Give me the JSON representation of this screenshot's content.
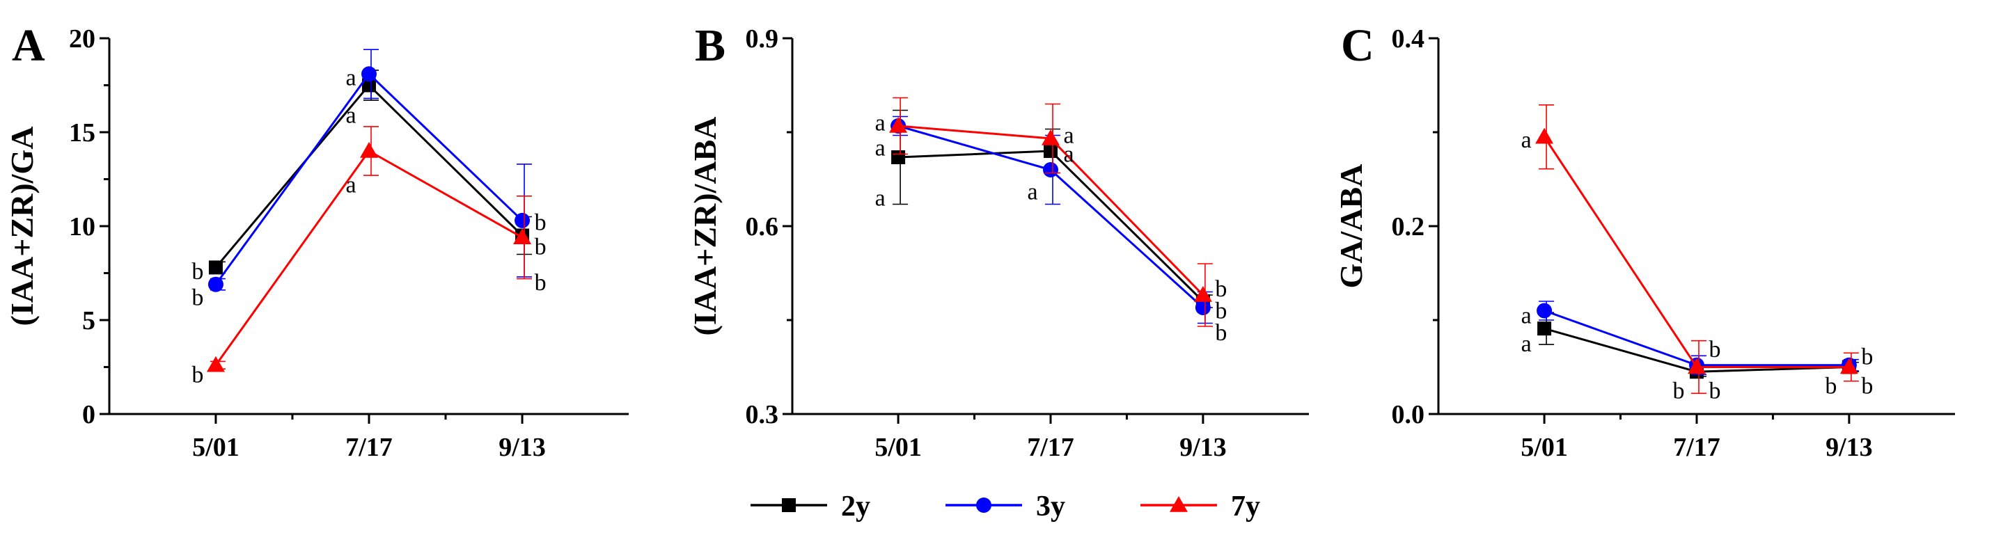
{
  "colors": {
    "2y": "#000000",
    "3y": "#0000ff",
    "7y": "#ff0000"
  },
  "legend": [
    "2y",
    "3y",
    "7y"
  ],
  "chart_data": [
    {
      "panel": "A",
      "type": "line",
      "ylabel": "(IAA+ZR)/GA",
      "categories": [
        "5/01",
        "7/17",
        "9/13"
      ],
      "ylim": [
        0,
        20
      ],
      "yticks": [
        "0",
        "5",
        "10",
        "15",
        "20"
      ],
      "series": [
        {
          "name": "2y",
          "marker": "square",
          "values": [
            7.8,
            17.5,
            9.5
          ],
          "err": [
            0.3,
            0.8,
            1.0
          ]
        },
        {
          "name": "3y",
          "marker": "circle",
          "values": [
            6.9,
            18.1,
            10.3
          ],
          "err": [
            0.3,
            1.3,
            3.0
          ]
        },
        {
          "name": "7y",
          "marker": "triangle",
          "values": [
            2.6,
            14.0,
            9.4
          ],
          "err": [
            0.2,
            1.3,
            2.2
          ]
        }
      ],
      "annotations": [
        {
          "text": "b",
          "x": 0,
          "y": 7.6,
          "side": "left"
        },
        {
          "text": "b",
          "x": 0,
          "y": 6.2,
          "side": "left"
        },
        {
          "text": "b",
          "x": 0,
          "y": 2.1,
          "side": "left"
        },
        {
          "text": "a",
          "x": 1,
          "y": 17.9,
          "side": "left"
        },
        {
          "text": "a",
          "x": 1,
          "y": 15.9,
          "side": "left"
        },
        {
          "text": "a",
          "x": 1,
          "y": 12.2,
          "side": "left"
        },
        {
          "text": "b",
          "x": 2,
          "y": 10.2,
          "side": "right"
        },
        {
          "text": "b",
          "x": 2,
          "y": 8.9,
          "side": "right"
        },
        {
          "text": "b",
          "x": 2,
          "y": 7.0,
          "side": "right"
        }
      ]
    },
    {
      "panel": "B",
      "type": "line",
      "ylabel": "(IAA+ZR)/ABA",
      "categories": [
        "5/01",
        "7/17",
        "9/13"
      ],
      "ylim": [
        0.3,
        0.9
      ],
      "yticks": [
        "0.3",
        "0.6",
        "0.9"
      ],
      "series": [
        {
          "name": "2y",
          "marker": "square",
          "values": [
            0.71,
            0.72,
            0.48
          ],
          "err": [
            0.075,
            0.035,
            0.01
          ]
        },
        {
          "name": "3y",
          "marker": "circle",
          "values": [
            0.76,
            0.69,
            0.47
          ],
          "err": [
            0.015,
            0.055,
            0.025
          ]
        },
        {
          "name": "7y",
          "marker": "triangle",
          "values": [
            0.76,
            0.74,
            0.49
          ],
          "err": [
            0.045,
            0.055,
            0.05
          ]
        }
      ],
      "annotations": [
        {
          "text": "a",
          "x": 0,
          "y": 0.765,
          "side": "left"
        },
        {
          "text": "a",
          "x": 0,
          "y": 0.725,
          "side": "left"
        },
        {
          "text": "a",
          "x": 0,
          "y": 0.645,
          "side": "left"
        },
        {
          "text": "a",
          "x": 1,
          "y": 0.745,
          "side": "right"
        },
        {
          "text": "a",
          "x": 1,
          "y": 0.715,
          "side": "right"
        },
        {
          "text": "a",
          "x": 1,
          "y": 0.655,
          "side": "left"
        },
        {
          "text": "b",
          "x": 2,
          "y": 0.5,
          "side": "right"
        },
        {
          "text": "b",
          "x": 2,
          "y": 0.465,
          "side": "right"
        },
        {
          "text": "b",
          "x": 2,
          "y": 0.43,
          "side": "right"
        }
      ]
    },
    {
      "panel": "C",
      "type": "line",
      "ylabel": "GA/ABA",
      "categories": [
        "5/01",
        "7/17",
        "9/13"
      ],
      "ylim": [
        0.0,
        0.4
      ],
      "yticks": [
        "0.0",
        "0.2",
        "0.4"
      ],
      "series": [
        {
          "name": "2y",
          "marker": "square",
          "values": [
            0.091,
            0.045,
            0.05
          ],
          "err": [
            0.017,
            0.005,
            0.005
          ]
        },
        {
          "name": "3y",
          "marker": "circle",
          "values": [
            0.11,
            0.052,
            0.052
          ],
          "err": [
            0.01,
            0.01,
            0.006
          ]
        },
        {
          "name": "7y",
          "marker": "triangle",
          "values": [
            0.295,
            0.05,
            0.05
          ],
          "err": [
            0.034,
            0.028,
            0.015
          ]
        }
      ],
      "annotations": [
        {
          "text": "a",
          "x": 0,
          "y": 0.292,
          "side": "left"
        },
        {
          "text": "a",
          "x": 0,
          "y": 0.105,
          "side": "left"
        },
        {
          "text": "a",
          "x": 0,
          "y": 0.075,
          "side": "left"
        },
        {
          "text": "b",
          "x": 1,
          "y": 0.069,
          "side": "right"
        },
        {
          "text": "b",
          "x": 1,
          "y": 0.025,
          "side": "left"
        },
        {
          "text": "b",
          "x": 1,
          "y": 0.025,
          "side": "right"
        },
        {
          "text": "b",
          "x": 2,
          "y": 0.061,
          "side": "right"
        },
        {
          "text": "b",
          "x": 2,
          "y": 0.03,
          "side": "left"
        },
        {
          "text": "b",
          "x": 2,
          "y": 0.03,
          "side": "right"
        }
      ]
    }
  ]
}
